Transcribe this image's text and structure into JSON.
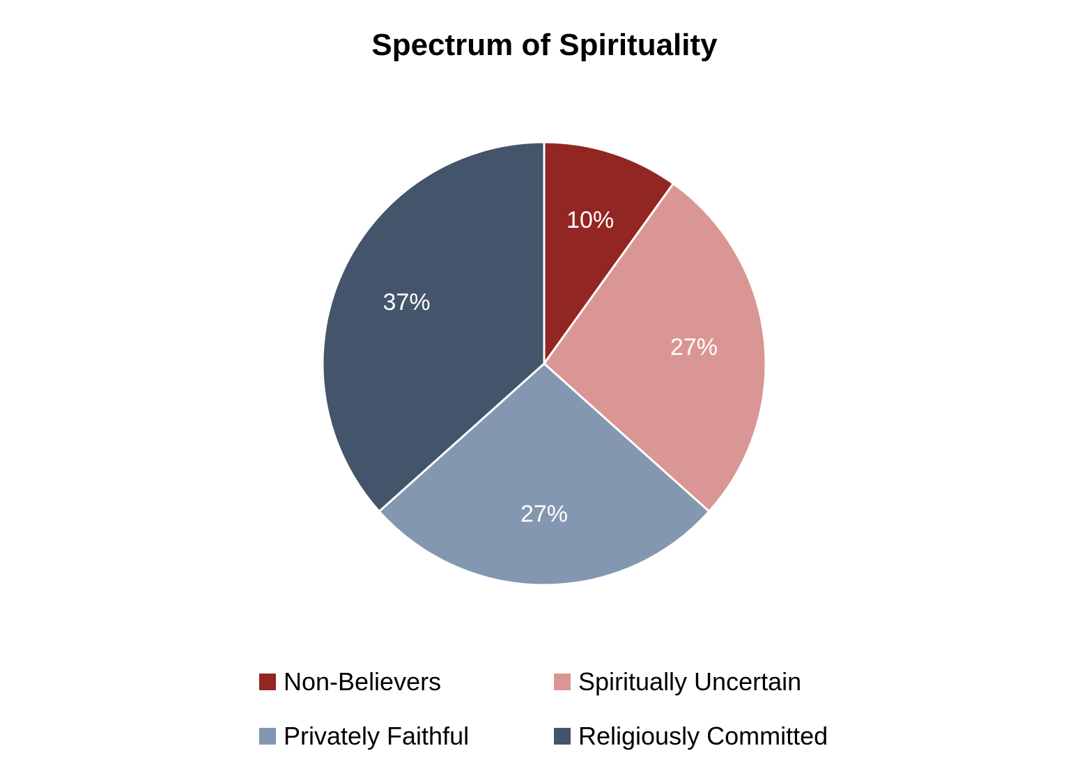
{
  "chart_data": {
    "type": "pie",
    "title": "Spectrum of Spirituality",
    "slices": [
      {
        "label": "Non-Believers",
        "value": 10,
        "display": "10%",
        "color": "#922623"
      },
      {
        "label": "Spiritually Uncertain",
        "value": 27,
        "display": "27%",
        "color": "#da9694"
      },
      {
        "label": "Privately Faithful",
        "value": 27,
        "display": "27%",
        "color": "#8497b0"
      },
      {
        "label": "Religiously Committed",
        "value": 37,
        "display": "37%",
        "color": "#44546a"
      }
    ],
    "start_angle": "12 o'clock",
    "direction": "clockwise",
    "slice_border_color": "#ffffff",
    "data_label_color": "#ffffff",
    "legend_position": "bottom"
  }
}
